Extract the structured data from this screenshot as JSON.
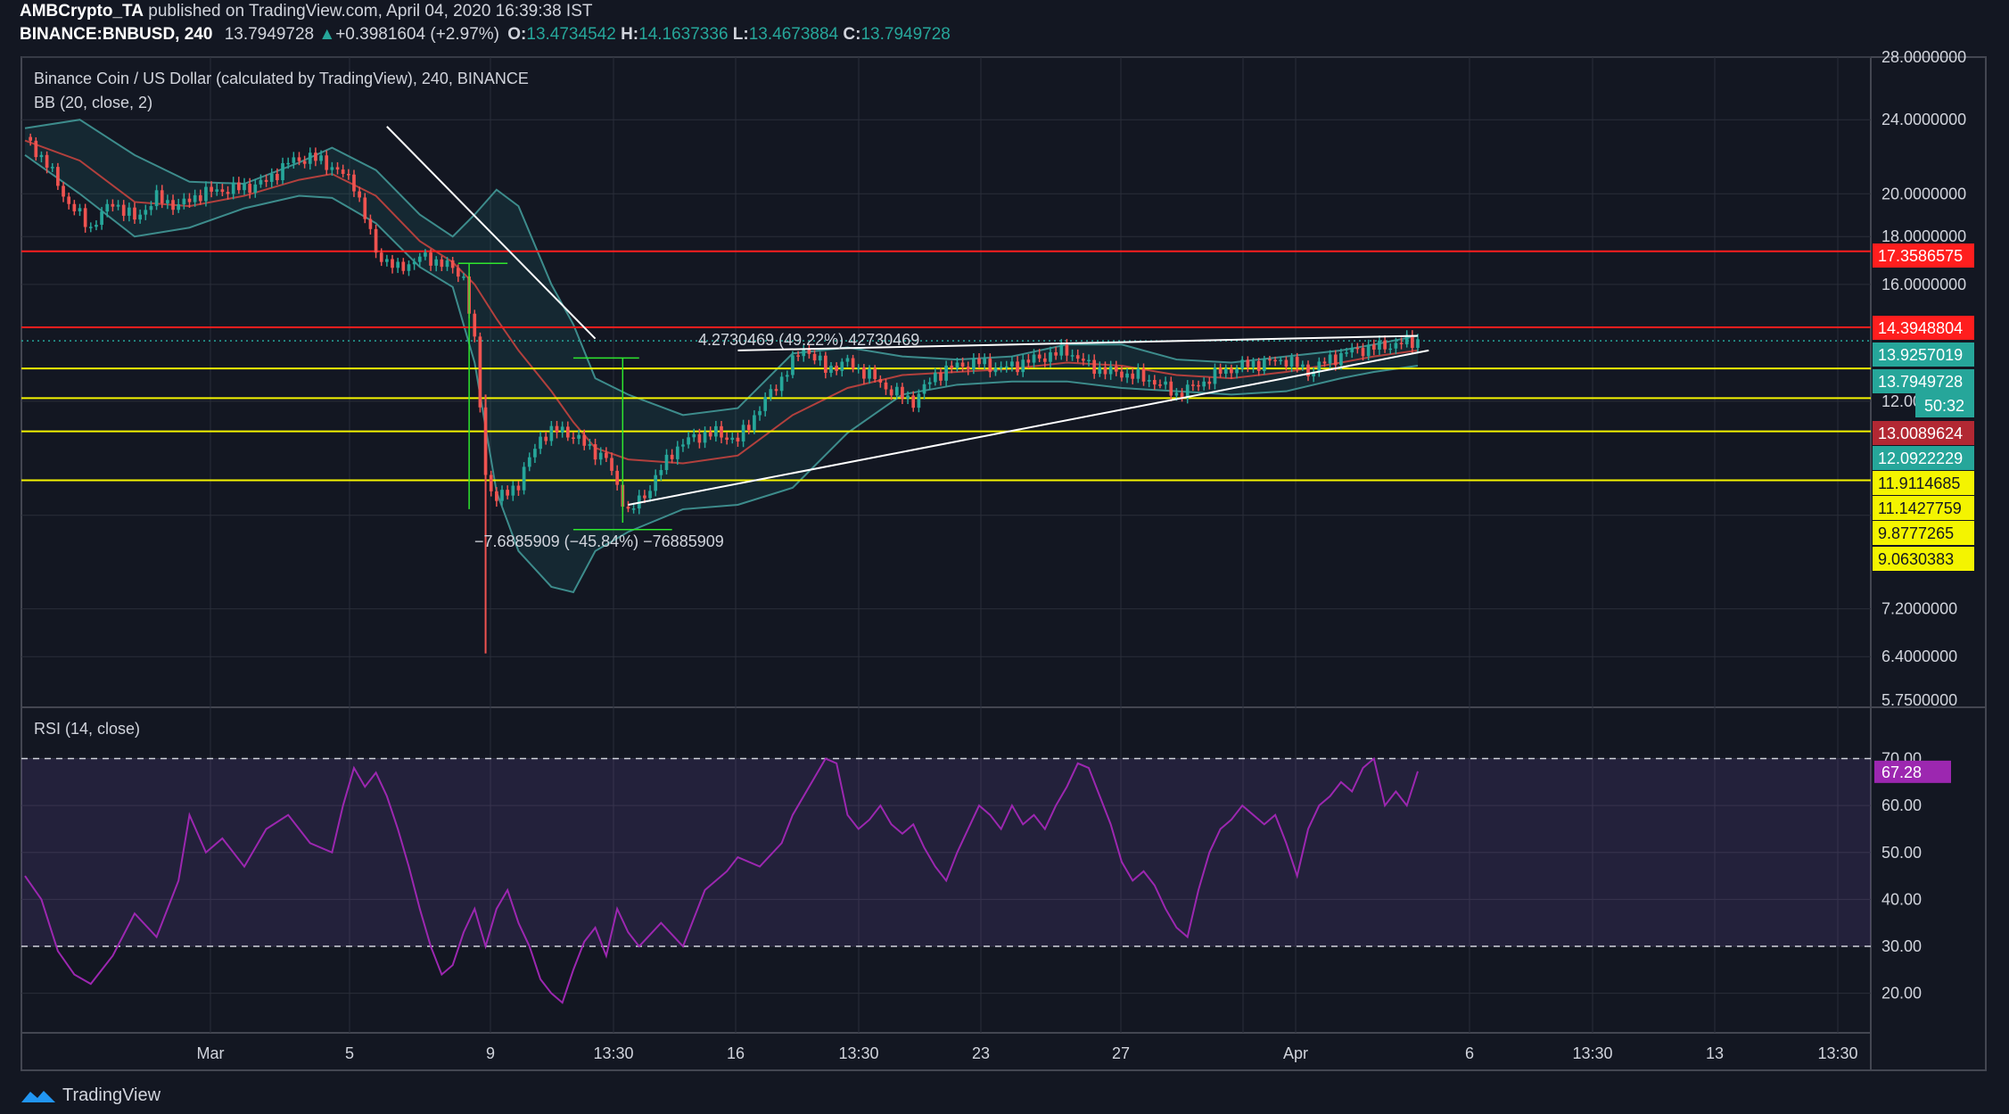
{
  "header": {
    "author": "AMBCrypto_TA",
    "published": "published on TradingView.com, April 04, 2020 16:39:38 IST",
    "symbol": "BINANCE:BNBUSD, 240",
    "last": "13.7949728",
    "change": "+0.3981604 (+2.97%)",
    "o_label": "O:",
    "o": "13.4734542",
    "h_label": "H:",
    "h": "14.1637336",
    "l_label": "L:",
    "l": "13.4673884",
    "c_label": "C:",
    "c": "13.7949728"
  },
  "legend": {
    "title": "Binance Coin / US Dollar (calculated by TradingView), 240, BINANCE",
    "bb": "BB (20, close, 2)",
    "rsi": "RSI (14, close)"
  },
  "annotations": {
    "up_measure": "4.2730469 (49.22%) 42730469",
    "down_measure": "−7.6885909 (−45.84%) −76885909"
  },
  "branding": {
    "name": "TradingView",
    "icon": "tradingview-logo-icon"
  },
  "colors": {
    "background": "#131722",
    "up": "#26a69a",
    "down": "#ef5350",
    "support": "#f4f400",
    "resistance": "#ff1e1e",
    "rsi": "#9c27b0",
    "bb": "#3d8c8c"
  },
  "chart_data": [
    {
      "type": "candlestick",
      "title": "Binance Coin / US Dollar (calculated by TradingView), 240, BINANCE",
      "scale": "log",
      "ylim": [
        5.75,
        28.0
      ],
      "price_ticks": [
        "28.0000000",
        "24.0000000",
        "20.0000000",
        "18.0000000",
        "16.0000000",
        "12.00",
        "7.2000000",
        "6.4000000",
        "5.7500000"
      ],
      "x_ticks": [
        "Mar",
        "5",
        "9",
        "13:30",
        "16",
        "13:30",
        "23",
        "27",
        "Apr",
        "6",
        "13:30",
        "13",
        "13:30"
      ],
      "close_path": [
        [
          0,
          23.0
        ],
        [
          4,
          21.5
        ],
        [
          8,
          19.5
        ],
        [
          12,
          18.4
        ],
        [
          16,
          19.6
        ],
        [
          20,
          18.8
        ],
        [
          24,
          19.8
        ],
        [
          28,
          19.4
        ],
        [
          32,
          20.0
        ],
        [
          36,
          20.2
        ],
        [
          40,
          20.3
        ],
        [
          44,
          20.6
        ],
        [
          48,
          21.6
        ],
        [
          52,
          21.9
        ],
        [
          56,
          21.4
        ],
        [
          60,
          20.5
        ],
        [
          64,
          17.3
        ],
        [
          68,
          16.6
        ],
        [
          72,
          17.1
        ],
        [
          76,
          16.9
        ],
        [
          80,
          16.3
        ],
        [
          82,
          13.8
        ],
        [
          84,
          10.0
        ],
        [
          86,
          9.4
        ],
        [
          90,
          9.8
        ],
        [
          94,
          11.0
        ],
        [
          98,
          11.2
        ],
        [
          102,
          10.8
        ],
        [
          106,
          10.4
        ],
        [
          110,
          9.1
        ],
        [
          114,
          9.7
        ],
        [
          118,
          10.6
        ],
        [
          122,
          11.0
        ],
        [
          126,
          11.1
        ],
        [
          130,
          10.9
        ],
        [
          134,
          11.8
        ],
        [
          138,
          12.7
        ],
        [
          142,
          13.7
        ],
        [
          146,
          13.0
        ],
        [
          150,
          13.2
        ],
        [
          154,
          12.8
        ],
        [
          158,
          12.3
        ],
        [
          162,
          12.0
        ],
        [
          166,
          12.8
        ],
        [
          170,
          13.1
        ],
        [
          174,
          13.2
        ],
        [
          178,
          13.0
        ],
        [
          182,
          13.2
        ],
        [
          186,
          13.4
        ],
        [
          190,
          13.6
        ],
        [
          194,
          13.1
        ],
        [
          198,
          12.9
        ],
        [
          202,
          12.8
        ],
        [
          206,
          12.6
        ],
        [
          210,
          12.2
        ],
        [
          214,
          12.5
        ],
        [
          218,
          12.9
        ],
        [
          222,
          13.1
        ],
        [
          226,
          13.2
        ],
        [
          230,
          13.3
        ],
        [
          234,
          12.9
        ],
        [
          238,
          13.3
        ],
        [
          242,
          13.6
        ],
        [
          246,
          13.7
        ],
        [
          250,
          13.8
        ],
        [
          254,
          13.95
        ]
      ],
      "high_wick": {
        "value": 14.1637336
      },
      "low_wick": {
        "value": 6.45
      },
      "bollinger": {
        "upper": [
          [
            0,
            23.5
          ],
          [
            10,
            24.0
          ],
          [
            20,
            22.0
          ],
          [
            30,
            20.6
          ],
          [
            40,
            20.5
          ],
          [
            50,
            21.6
          ],
          [
            56,
            22.4
          ],
          [
            64,
            21.2
          ],
          [
            72,
            19.0
          ],
          [
            78,
            18.0
          ],
          [
            82,
            19.0
          ],
          [
            86,
            20.2
          ],
          [
            90,
            19.4
          ],
          [
            96,
            16.0
          ],
          [
            100,
            14.5
          ],
          [
            104,
            12.7
          ],
          [
            110,
            12.2
          ],
          [
            120,
            11.6
          ],
          [
            130,
            11.8
          ],
          [
            140,
            13.5
          ],
          [
            150,
            13.7
          ],
          [
            160,
            13.4
          ],
          [
            170,
            13.3
          ],
          [
            180,
            13.4
          ],
          [
            190,
            13.8
          ],
          [
            200,
            13.8
          ],
          [
            210,
            13.3
          ],
          [
            220,
            13.2
          ],
          [
            230,
            13.4
          ],
          [
            240,
            13.6
          ],
          [
            246,
            13.8
          ],
          [
            254,
            14.1
          ]
        ],
        "basis": [
          [
            0,
            22.8
          ],
          [
            10,
            21.7
          ],
          [
            20,
            19.6
          ],
          [
            30,
            19.4
          ],
          [
            40,
            19.9
          ],
          [
            50,
            20.7
          ],
          [
            56,
            21.0
          ],
          [
            64,
            19.9
          ],
          [
            72,
            17.8
          ],
          [
            78,
            16.9
          ],
          [
            82,
            16.0
          ],
          [
            86,
            14.7
          ],
          [
            90,
            13.6
          ],
          [
            96,
            12.3
          ],
          [
            100,
            11.4
          ],
          [
            104,
            10.7
          ],
          [
            110,
            10.4
          ],
          [
            120,
            10.3
          ],
          [
            130,
            10.5
          ],
          [
            140,
            11.6
          ],
          [
            150,
            12.4
          ],
          [
            160,
            12.8
          ],
          [
            170,
            12.9
          ],
          [
            180,
            13.0
          ],
          [
            190,
            13.2
          ],
          [
            200,
            13.1
          ],
          [
            210,
            12.8
          ],
          [
            220,
            12.7
          ],
          [
            230,
            12.9
          ],
          [
            240,
            13.2
          ],
          [
            246,
            13.4
          ],
          [
            254,
            13.6
          ]
        ],
        "lower": [
          [
            0,
            22.0
          ],
          [
            10,
            20.0
          ],
          [
            20,
            18.0
          ],
          [
            30,
            18.4
          ],
          [
            40,
            19.3
          ],
          [
            50,
            19.9
          ],
          [
            56,
            19.8
          ],
          [
            64,
            18.6
          ],
          [
            72,
            16.7
          ],
          [
            78,
            15.9
          ],
          [
            82,
            13.2
          ],
          [
            86,
            9.6
          ],
          [
            90,
            8.3
          ],
          [
            96,
            7.6
          ],
          [
            100,
            7.5
          ],
          [
            104,
            8.3
          ],
          [
            110,
            8.7
          ],
          [
            120,
            9.2
          ],
          [
            130,
            9.3
          ],
          [
            140,
            9.7
          ],
          [
            150,
            11.1
          ],
          [
            160,
            12.2
          ],
          [
            170,
            12.5
          ],
          [
            180,
            12.6
          ],
          [
            190,
            12.6
          ],
          [
            200,
            12.4
          ],
          [
            210,
            12.3
          ],
          [
            220,
            12.2
          ],
          [
            230,
            12.3
          ],
          [
            240,
            12.7
          ],
          [
            246,
            12.9
          ],
          [
            254,
            13.1
          ]
        ]
      },
      "horizontal_levels": [
        {
          "value": 17.3586575,
          "label": "17.3586575",
          "color": "#ff1e1e"
        },
        {
          "value": 14.3948804,
          "label": "14.3948804",
          "color": "#ff1e1e"
        },
        {
          "value": 13.0089624,
          "label": "13.0089624",
          "color": "#f4f400"
        },
        {
          "value": 12.0922229,
          "label": "12.0922229",
          "color": "#f4f400"
        },
        {
          "value": 11.1427759,
          "label": "11.1427759",
          "color": "#f4f400"
        },
        {
          "value": 9.8777265,
          "label": "9.8777265",
          "color": "#f4f400"
        }
      ],
      "axis_badges": [
        {
          "value": 17.3586575,
          "text": "17.3586575",
          "bg": "#ff1e1e",
          "fg": "#ffffff"
        },
        {
          "value": 14.3948804,
          "text": "14.3948804",
          "bg": "#ff1e1e",
          "fg": "#ffffff"
        },
        {
          "value": 13.9257019,
          "text": "13.9257019",
          "bg": "#26a69a",
          "fg": "#ffffff"
        },
        {
          "value": 13.7949728,
          "text": "13.7949728",
          "bg": "#26a69a",
          "fg": "#ffffff"
        },
        {
          "value": 13.0089624,
          "text": "13.0089624",
          "bg": "#b22833",
          "fg": "#ffffff"
        },
        {
          "value": 12.0922229,
          "text": "12.0922229",
          "bg": "#26a69a",
          "fg": "#ffffff"
        },
        {
          "value": 11.9114685,
          "text": "11.9114685",
          "bg": "#f4f400",
          "fg": "#131722"
        },
        {
          "value": 11.1427759,
          "text": "11.1427759",
          "bg": "#f4f400",
          "fg": "#131722"
        },
        {
          "value": 9.8777265,
          "text": "9.8777265",
          "bg": "#f4f400",
          "fg": "#131722"
        },
        {
          "value": 9.0630383,
          "text": "9.0630383",
          "bg": "#f4f400",
          "fg": "#131722"
        }
      ],
      "countdown": "50:32",
      "trendlines": [
        {
          "from": [
            66,
            23.6
          ],
          "to": [
            104,
            14.0
          ]
        },
        {
          "from": [
            130,
            13.6
          ],
          "to": [
            254,
            14.1
          ]
        },
        {
          "from": [
            110,
            9.3
          ],
          "to": [
            256,
            13.6
          ]
        }
      ]
    },
    {
      "type": "line",
      "title": "RSI (14, close)",
      "ylim": [
        15,
        72
      ],
      "y_ticks": [
        "70.00",
        "60.00",
        "50.00",
        "40.00",
        "30.00",
        "20.00"
      ],
      "bands": [
        30,
        70
      ],
      "current": "67.28",
      "values": [
        [
          0,
          45
        ],
        [
          3,
          40
        ],
        [
          6,
          29
        ],
        [
          9,
          24
        ],
        [
          12,
          22
        ],
        [
          16,
          28
        ],
        [
          20,
          37
        ],
        [
          24,
          32
        ],
        [
          28,
          44
        ],
        [
          30,
          58
        ],
        [
          33,
          50
        ],
        [
          36,
          53
        ],
        [
          40,
          47
        ],
        [
          44,
          55
        ],
        [
          48,
          58
        ],
        [
          52,
          52
        ],
        [
          56,
          50
        ],
        [
          58,
          60
        ],
        [
          60,
          68
        ],
        [
          62,
          64
        ],
        [
          64,
          67
        ],
        [
          66,
          62
        ],
        [
          68,
          55
        ],
        [
          70,
          47
        ],
        [
          72,
          38
        ],
        [
          74,
          30
        ],
        [
          76,
          24
        ],
        [
          78,
          26
        ],
        [
          80,
          33
        ],
        [
          82,
          38
        ],
        [
          84,
          30
        ],
        [
          86,
          38
        ],
        [
          88,
          42
        ],
        [
          90,
          35
        ],
        [
          92,
          30
        ],
        [
          94,
          23
        ],
        [
          96,
          20
        ],
        [
          98,
          18
        ],
        [
          100,
          25
        ],
        [
          102,
          31
        ],
        [
          104,
          34
        ],
        [
          106,
          28
        ],
        [
          108,
          38
        ],
        [
          110,
          33
        ],
        [
          112,
          30
        ],
        [
          116,
          35
        ],
        [
          120,
          30
        ],
        [
          124,
          42
        ],
        [
          128,
          46
        ],
        [
          130,
          49
        ],
        [
          134,
          47
        ],
        [
          138,
          52
        ],
        [
          140,
          58
        ],
        [
          144,
          66
        ],
        [
          146,
          70
        ],
        [
          148,
          69
        ],
        [
          150,
          58
        ],
        [
          152,
          55
        ],
        [
          154,
          57
        ],
        [
          156,
          60
        ],
        [
          158,
          56
        ],
        [
          160,
          54
        ],
        [
          162,
          56
        ],
        [
          164,
          51
        ],
        [
          166,
          47
        ],
        [
          168,
          44
        ],
        [
          170,
          50
        ],
        [
          172,
          55
        ],
        [
          174,
          60
        ],
        [
          176,
          58
        ],
        [
          178,
          55
        ],
        [
          180,
          60
        ],
        [
          182,
          56
        ],
        [
          184,
          58
        ],
        [
          186,
          55
        ],
        [
          188,
          60
        ],
        [
          190,
          64
        ],
        [
          192,
          69
        ],
        [
          194,
          68
        ],
        [
          196,
          62
        ],
        [
          198,
          56
        ],
        [
          200,
          48
        ],
        [
          202,
          44
        ],
        [
          204,
          46
        ],
        [
          206,
          43
        ],
        [
          208,
          38
        ],
        [
          210,
          34
        ],
        [
          212,
          32
        ],
        [
          214,
          42
        ],
        [
          216,
          50
        ],
        [
          218,
          55
        ],
        [
          220,
          57
        ],
        [
          222,
          60
        ],
        [
          224,
          58
        ],
        [
          226,
          56
        ],
        [
          228,
          58
        ],
        [
          230,
          52
        ],
        [
          232,
          45
        ],
        [
          234,
          55
        ],
        [
          236,
          60
        ],
        [
          238,
          62
        ],
        [
          240,
          65
        ],
        [
          242,
          63
        ],
        [
          244,
          68
        ],
        [
          246,
          70
        ],
        [
          248,
          60
        ],
        [
          250,
          63
        ],
        [
          252,
          60
        ],
        [
          254,
          67.28
        ]
      ]
    }
  ]
}
